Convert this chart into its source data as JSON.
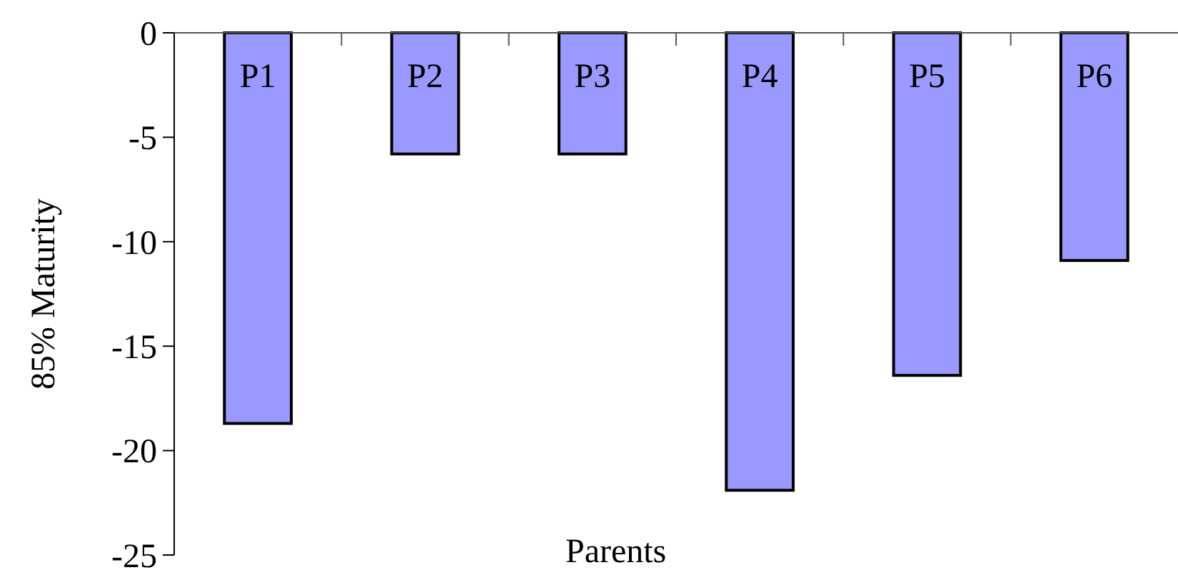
{
  "chart_data": {
    "type": "bar",
    "xlabel": "Parents",
    "ylabel": "85% Maturity",
    "categories": [
      "P1",
      "P2",
      "P3",
      "P4",
      "P5",
      "P6"
    ],
    "values": [
      -18.7,
      -5.8,
      -5.8,
      -21.9,
      -16.4,
      -10.9
    ],
    "color": "#9999ff",
    "ylim": [
      -25,
      0
    ],
    "yticks": [
      -25,
      -20,
      -15,
      -10,
      -5,
      0
    ],
    "grid": false
  }
}
